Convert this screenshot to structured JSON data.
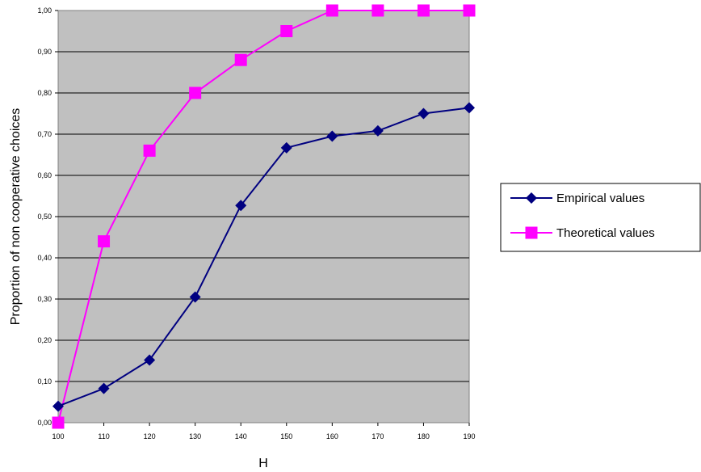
{
  "chart_data": {
    "type": "line",
    "title": "",
    "xlabel": "H",
    "ylabel": "Proportion of non cooperative choices",
    "x": [
      100,
      110,
      120,
      130,
      140,
      150,
      160,
      170,
      180,
      190
    ],
    "x_tick_labels": [
      "100",
      "110",
      "120",
      "130",
      "140",
      "150",
      "160",
      "170",
      "180",
      "190"
    ],
    "y_tick_labels": [
      "0,00",
      "0,10",
      "0,20",
      "0,30",
      "0,40",
      "0,50",
      "0,60",
      "0,70",
      "0,80",
      "0,90",
      "1,00"
    ],
    "ylim": [
      0,
      1
    ],
    "grid": "horizontal",
    "legend_position": "right",
    "series": [
      {
        "name": "Empirical values",
        "color": "#000080",
        "marker": "diamond",
        "values": [
          0.04,
          0.083,
          0.152,
          0.305,
          0.527,
          0.667,
          0.695,
          0.708,
          0.75,
          0.764
        ]
      },
      {
        "name": "Theoretical values",
        "color": "#ff00ff",
        "marker": "square",
        "values": [
          0.0,
          0.44,
          0.66,
          0.8,
          0.88,
          0.95,
          1.0,
          1.0,
          1.0,
          1.0
        ]
      }
    ]
  }
}
